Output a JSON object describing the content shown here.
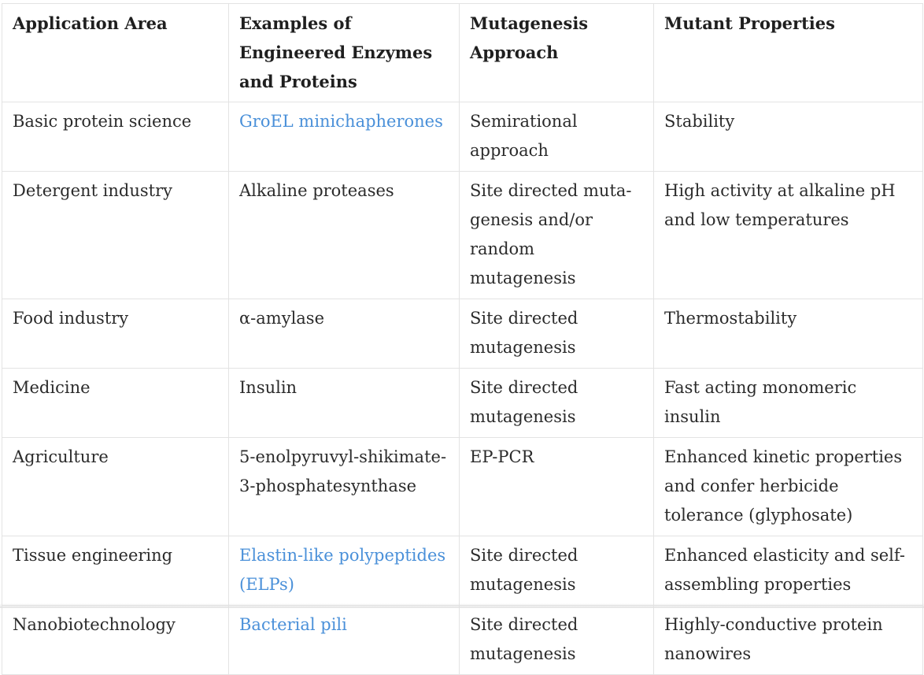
{
  "table": {
    "headers": [
      "Application Area",
      "Examples of Engineered Enzymes and Proteins",
      "Mutagenesis Approach",
      "Mutant Properties"
    ],
    "rows": [
      {
        "area": "Basic protein science",
        "example": "GroEL minichapherones",
        "example_is_link": true,
        "approach": "Semirational approach",
        "properties": "Stability"
      },
      {
        "area": "Detergent industry",
        "example": "Alkaline proteases",
        "example_is_link": false,
        "approach": "Site directed muta­ge­ne­sis and/or random mutagenesis",
        "properties": "High activity at alkaline pH and low temperatures"
      },
      {
        "area": "Food industry",
        "example": "α-amylase",
        "example_is_link": false,
        "approach": "Site directed mutagenesis",
        "properties": "Thermostability"
      },
      {
        "area": "Medicine",
        "example": "Insulin",
        "example_is_link": false,
        "approach": "Site directed mutagenesis",
        "properties": "Fast acting monomeric insulin"
      },
      {
        "area": "Agriculture",
        "example": "5-enolpyruvyl-shikimate-3-phosphatesynthase",
        "example_is_link": false,
        "approach": "EP-PCR",
        "properties": "Enhanced kinetic properties and confer herbicide tolerance (glyphosate)"
      },
      {
        "area": "Tissue engineering",
        "example": "Elastin-like polypeptides (ELPs)",
        "example_is_link": true,
        "approach": "Site directed mutagenesis",
        "properties": "Enhanced elasticity and self-as­sem­bling properties"
      },
      {
        "area": "Nanobiotechnology",
        "example": "Bacterial pili",
        "example_is_link": true,
        "approach": "Site directed mutagenesis",
        "properties": "Highly-conductive protein nanowires"
      }
    ]
  },
  "colors": {
    "link": "#4a90d9",
    "text": "#2b2b2b",
    "border": "#e3e3e3"
  }
}
